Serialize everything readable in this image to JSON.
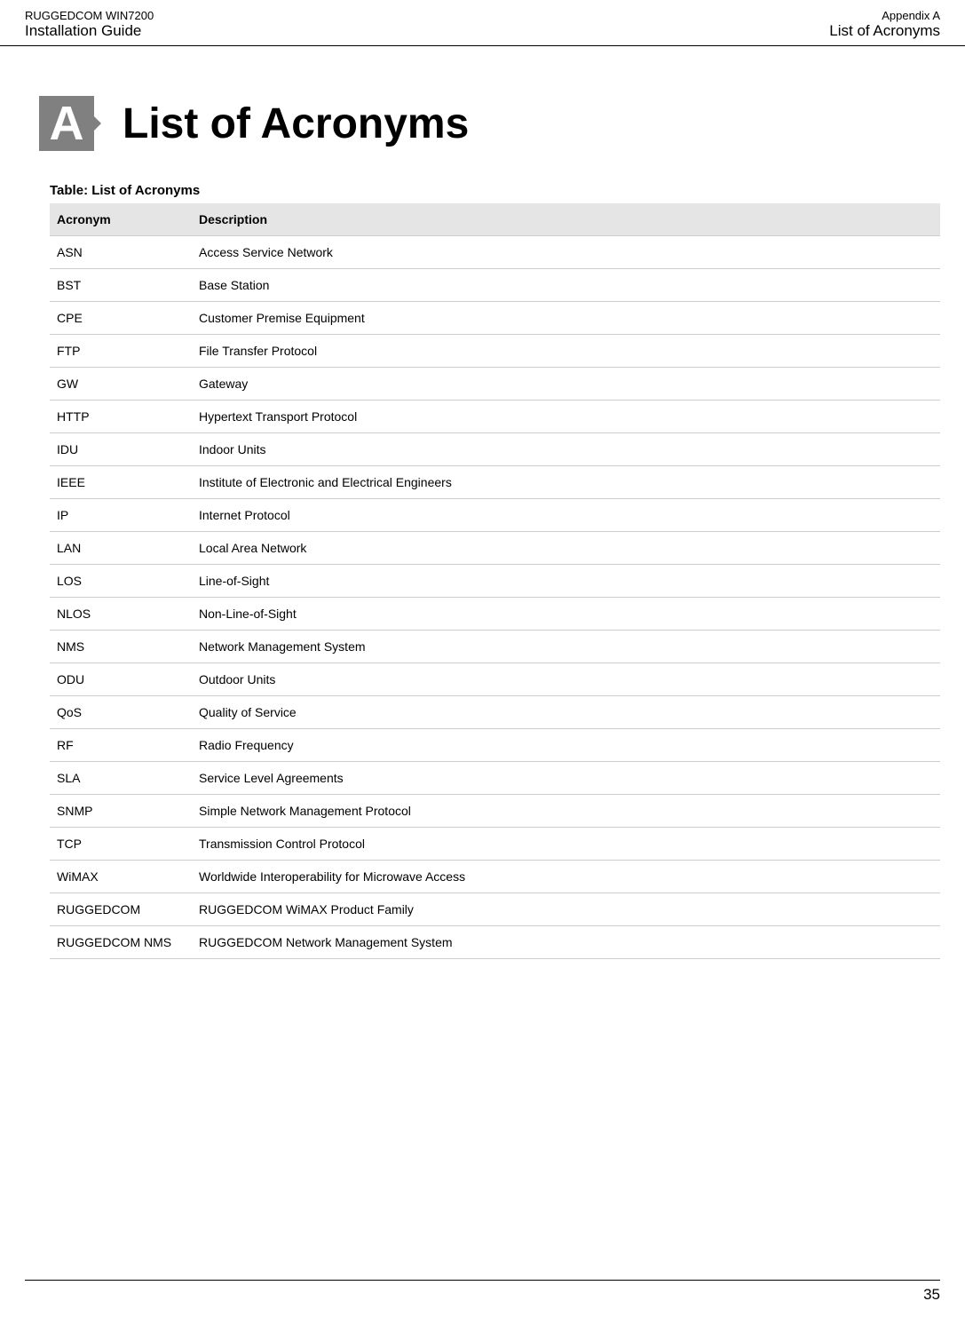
{
  "header": {
    "left_line1": "RUGGEDCOM WIN7200",
    "left_line2": "Installation Guide",
    "right_line1": "Appendix A",
    "right_line2": "List of Acronyms"
  },
  "appendix_letter": "A",
  "page_title": "List of Acronyms",
  "table_caption": "Table: List of Acronyms",
  "columns": {
    "col1": "Acronym",
    "col2": "Description"
  },
  "rows": [
    {
      "a": "ASN",
      "d": "Access Service Network"
    },
    {
      "a": "BST",
      "d": "Base Station"
    },
    {
      "a": "CPE",
      "d": "Customer Premise Equipment"
    },
    {
      "a": "FTP",
      "d": "File Transfer Protocol"
    },
    {
      "a": "GW",
      "d": "Gateway"
    },
    {
      "a": "HTTP",
      "d": "Hypertext Transport Protocol"
    },
    {
      "a": "IDU",
      "d": "Indoor Units"
    },
    {
      "a": "IEEE",
      "d": "Institute of Electronic and Electrical Engineers"
    },
    {
      "a": "IP",
      "d": "Internet Protocol"
    },
    {
      "a": "LAN",
      "d": "Local Area Network"
    },
    {
      "a": "LOS",
      "d": "Line-of-Sight"
    },
    {
      "a": "NLOS",
      "d": "Non-Line-of-Sight"
    },
    {
      "a": "NMS",
      "d": "Network Management System"
    },
    {
      "a": "ODU",
      "d": "Outdoor Units"
    },
    {
      "a": "QoS",
      "d": "Quality of Service"
    },
    {
      "a": "RF",
      "d": "Radio Frequency"
    },
    {
      "a": "SLA",
      "d": "Service Level Agreements"
    },
    {
      "a": "SNMP",
      "d": "Simple Network Management Protocol"
    },
    {
      "a": "TCP",
      "d": "Transmission Control Protocol"
    },
    {
      "a": "WiMAX",
      "d": "Worldwide Interoperability for Microwave Access"
    },
    {
      "a": "RUGGEDCOM",
      "d": "RUGGEDCOM WiMAX Product Family"
    },
    {
      "a": "RUGGEDCOM NMS",
      "d": "RUGGEDCOM Network Management System"
    }
  ],
  "page_number": "35"
}
